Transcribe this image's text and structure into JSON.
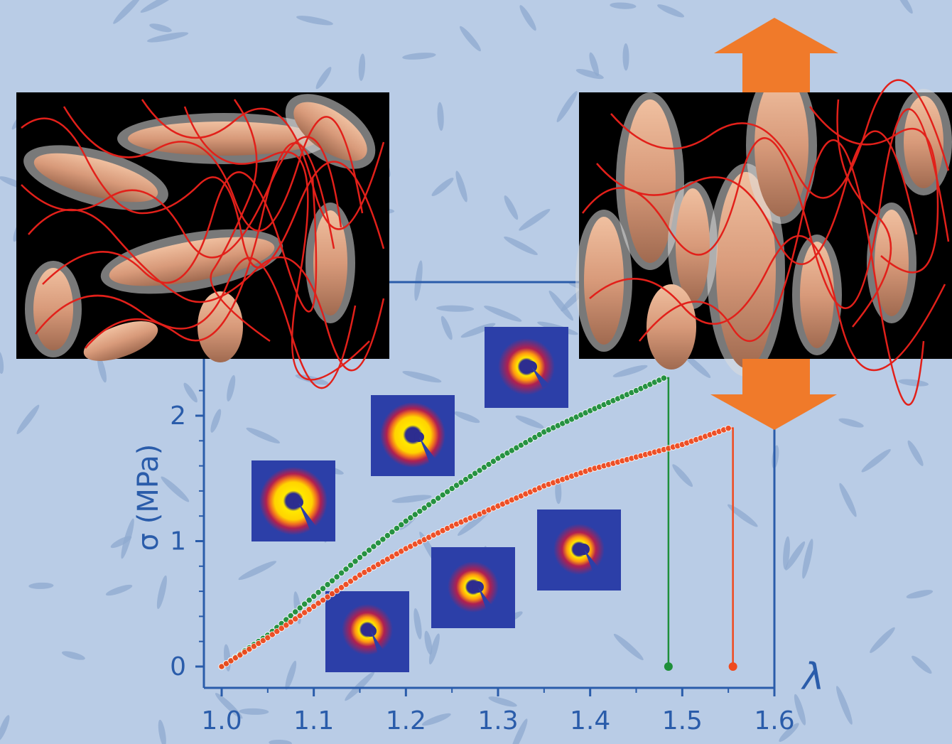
{
  "chart_data": {
    "type": "scatter",
    "title": "",
    "xlabel": "λ",
    "ylabel": "σ (MPa)",
    "xlim": [
      1.0,
      1.6
    ],
    "ylim": [
      0,
      2.2
    ],
    "x_ticks": [
      "1.0",
      "1.1",
      "1.2",
      "1.3",
      "1.4",
      "1.5",
      "1.6"
    ],
    "y_ticks": [
      "0",
      "1",
      "2"
    ],
    "grid": false,
    "legend": "none",
    "series": [
      {
        "color": "#1f8f3a",
        "x": [
          1.0,
          1.05,
          1.1,
          1.15,
          1.2,
          1.25,
          1.3,
          1.35,
          1.4,
          1.45,
          1.48
        ],
        "y": [
          0.0,
          0.25,
          0.56,
          0.87,
          1.16,
          1.42,
          1.66,
          1.87,
          2.04,
          2.2,
          2.3
        ],
        "break_x": 1.485,
        "break_y": 0
      },
      {
        "color": "#f04a1e",
        "x": [
          1.0,
          1.05,
          1.1,
          1.15,
          1.2,
          1.25,
          1.3,
          1.35,
          1.4,
          1.45,
          1.5,
          1.55
        ],
        "y": [
          0.0,
          0.23,
          0.48,
          0.73,
          0.94,
          1.12,
          1.28,
          1.44,
          1.57,
          1.67,
          1.77,
          1.9
        ],
        "break_x": 1.555,
        "break_y": 0
      }
    ]
  },
  "colors": {
    "background": "#b9cce6",
    "axis": "#2a5caa",
    "arrow": "#f07a2a",
    "inset_bg": "#000000",
    "rod": "#d89a7a",
    "chain": "#e2201a"
  },
  "icons": [
    "stretch-arrow-icon"
  ]
}
